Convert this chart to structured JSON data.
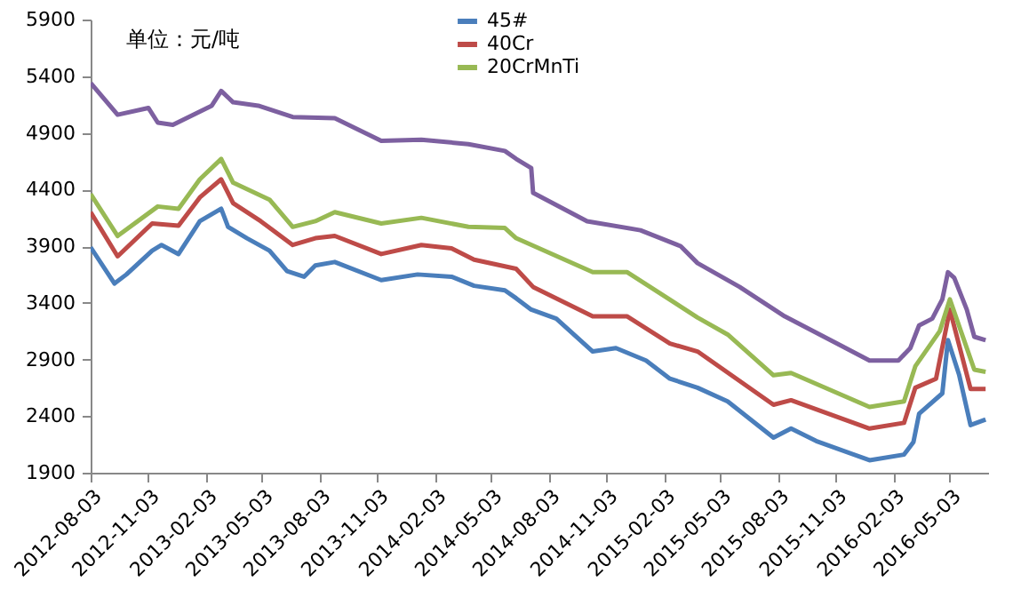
{
  "chart_data": {
    "type": "line",
    "annotations": [
      "单位：元/吨"
    ],
    "xlim": [
      "2012-08-03",
      "2016-07-03"
    ],
    "xticks": [
      "2012-08-03",
      "2012-11-03",
      "2013-02-03",
      "2013-05-03",
      "2013-08-03",
      "2013-11-03",
      "2014-02-03",
      "2014-05-03",
      "2014-08-03",
      "2014-11-03",
      "2015-02-03",
      "2015-05-03",
      "2015-08-03",
      "2015-11-03",
      "2016-02-03",
      "2016-05-03"
    ],
    "ylim": [
      1900,
      5900
    ],
    "yticks": [
      1900,
      2400,
      2900,
      3400,
      3900,
      4400,
      4900,
      5400,
      5900
    ],
    "grid": false,
    "legend": "top",
    "marker": "none",
    "line_style": "solid",
    "series": [
      {
        "name": "45#",
        "color": "#4a7ebb",
        "x": [
          "2012-08-03",
          "2012-09-10",
          "2012-09-29",
          "2012-11-09",
          "2012-11-24",
          "2012-12-21",
          "2013-01-24",
          "2013-02-27",
          "2013-03-10",
          "2013-04-09",
          "2013-05-15",
          "2013-06-12",
          "2013-07-09",
          "2013-07-27",
          "2013-08-27",
          "2013-11-09",
          "2014-01-06",
          "2014-03-01",
          "2014-04-06",
          "2014-05-25",
          "2014-06-12",
          "2014-07-06",
          "2014-08-15",
          "2014-10-12",
          "2014-11-18",
          "2015-01-05",
          "2015-02-12",
          "2015-03-28",
          "2015-05-15",
          "2015-07-27",
          "2015-08-24",
          "2015-10-03",
          "2015-12-27",
          "2016-02-20",
          "2016-03-06",
          "2016-03-15",
          "2016-04-21",
          "2016-04-30",
          "2016-05-18",
          "2016-06-05",
          "2016-06-29"
        ],
        "values": [
          3890,
          3570,
          3650,
          3860,
          3910,
          3830,
          4120,
          4230,
          4070,
          3970,
          3860,
          3680,
          3630,
          3730,
          3760,
          3600,
          3650,
          3630,
          3550,
          3510,
          3440,
          3340,
          3260,
          2970,
          3000,
          2890,
          2730,
          2650,
          2530,
          2210,
          2290,
          2180,
          2010,
          2060,
          2170,
          2420,
          2600,
          3070,
          2760,
          2320,
          2370
        ]
      },
      {
        "name": "40Cr",
        "color": "#be4b48",
        "x": [
          "2012-08-03",
          "2012-09-15",
          "2012-11-09",
          "2012-12-21",
          "2013-01-24",
          "2013-02-27",
          "2013-03-18",
          "2013-05-01",
          "2013-06-21",
          "2013-07-27",
          "2013-08-27",
          "2013-11-09",
          "2014-01-12",
          "2014-03-01",
          "2014-04-06",
          "2014-06-12",
          "2014-07-09",
          "2014-10-12",
          "2014-12-06",
          "2015-02-12",
          "2015-03-28",
          "2015-07-27",
          "2015-08-24",
          "2015-12-27",
          "2016-02-20",
          "2016-03-09",
          "2016-04-11",
          "2016-05-03",
          "2016-06-05",
          "2016-06-29"
        ],
        "values": [
          4200,
          3810,
          4100,
          4080,
          4330,
          4490,
          4280,
          4120,
          3910,
          3970,
          3990,
          3830,
          3910,
          3880,
          3780,
          3700,
          3540,
          3280,
          3280,
          3040,
          2970,
          2500,
          2540,
          2290,
          2340,
          2650,
          2730,
          3340,
          2640,
          2640
        ]
      },
      {
        "name": "20CrMnTi",
        "color": "#98b954",
        "x": [
          "2012-08-03",
          "2012-09-15",
          "2012-11-18",
          "2012-12-21",
          "2013-01-24",
          "2013-02-27",
          "2013-03-18",
          "2013-05-15",
          "2013-06-21",
          "2013-07-27",
          "2013-08-27",
          "2013-11-09",
          "2014-01-12",
          "2014-03-28",
          "2014-05-25",
          "2014-06-12",
          "2014-10-12",
          "2014-12-06",
          "2015-03-28",
          "2015-05-15",
          "2015-07-27",
          "2015-08-24",
          "2015-12-27",
          "2016-02-20",
          "2016-03-09",
          "2016-04-17",
          "2016-05-03",
          "2016-06-11",
          "2016-06-29"
        ],
        "values": [
          4360,
          3990,
          4250,
          4230,
          4490,
          4670,
          4460,
          4310,
          4070,
          4120,
          4200,
          4100,
          4150,
          4070,
          4060,
          3970,
          3670,
          3670,
          3270,
          3120,
          2760,
          2780,
          2480,
          2530,
          2840,
          3150,
          3430,
          2810,
          2790
        ]
      },
      {
        "color": "#7d60a0",
        "x": [
          "2012-08-03",
          "2012-09-15",
          "2012-11-03",
          "2012-11-18",
          "2012-12-12",
          "2013-02-12",
          "2013-02-27",
          "2013-03-18",
          "2013-04-27",
          "2013-06-21",
          "2013-08-27",
          "2013-11-09",
          "2014-01-12",
          "2014-03-28",
          "2014-05-25",
          "2014-06-12",
          "2014-07-06",
          "2014-07-09",
          "2014-10-03",
          "2014-12-27",
          "2015-03-01",
          "2015-03-28",
          "2015-06-03",
          "2015-08-14",
          "2015-11-09",
          "2015-12-27",
          "2016-02-11",
          "2016-03-01",
          "2016-03-15",
          "2016-04-05",
          "2016-04-21",
          "2016-04-30",
          "2016-05-10",
          "2016-05-30",
          "2016-06-11",
          "2016-06-29"
        ],
        "values": [
          5340,
          5060,
          5120,
          4990,
          4970,
          5140,
          5270,
          5170,
          5140,
          5040,
          5030,
          4830,
          4840,
          4800,
          4740,
          4670,
          4590,
          4370,
          4120,
          4040,
          3900,
          3750,
          3540,
          3280,
          3030,
          2890,
          2890,
          3000,
          3200,
          3260,
          3430,
          3670,
          3620,
          3340,
          3100,
          3070
        ]
      }
    ]
  }
}
